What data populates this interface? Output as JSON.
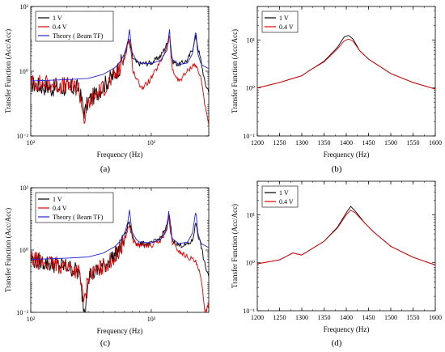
{
  "chart_data": [
    {
      "panel": "(a)",
      "type": "line",
      "xscale": "log",
      "yscale": "log",
      "xlim": [
        100,
        3000
      ],
      "ylim": [
        0.01,
        100
      ],
      "xticks": [
        100,
        1000
      ],
      "xtick_labels": [
        "10²",
        "10³"
      ],
      "yticks": [
        0.01,
        1,
        100
      ],
      "ytick_labels": [
        "10⁻²",
        "10⁰",
        "10²"
      ],
      "xlabel": "Frequency (Hz)",
      "ylabel": "Transfer Function (Acc/Acc)",
      "legend": "top-left",
      "series": [
        {
          "name": "1 V",
          "color": "#000000",
          "noisy": true,
          "x": [
            100,
            150,
            200,
            250,
            280,
            300,
            350,
            400,
            500,
            550,
            600,
            650,
            680,
            700,
            750,
            800,
            1000,
            1200,
            1350,
            1420,
            1450,
            1500,
            1700,
            2000,
            2200,
            2350,
            2450,
            2600,
            2800,
            3000
          ],
          "y": [
            0.4,
            0.3,
            0.3,
            0.3,
            0.05,
            0.12,
            0.2,
            0.35,
            0.8,
            1.5,
            3,
            10,
            5,
            2.6,
            1.9,
            1.7,
            1.8,
            3,
            7,
            14,
            6,
            2,
            1.6,
            2.2,
            5,
            12,
            5,
            1.9,
            0.4,
            0.25
          ]
        },
        {
          "name": "0.4 V",
          "color": "#e00000",
          "noisy": true,
          "x": [
            100,
            150,
            200,
            250,
            280,
            300,
            350,
            400,
            500,
            550,
            600,
            650,
            680,
            700,
            750,
            800,
            850,
            1000,
            1200,
            1350,
            1420,
            1450,
            1500,
            1700,
            2000,
            2200,
            2350,
            2400,
            2500,
            2600,
            2800,
            3000
          ],
          "y": [
            0.45,
            0.4,
            0.35,
            0.3,
            0.03,
            0.1,
            0.2,
            0.3,
            0.7,
            1.2,
            2.5,
            9,
            4,
            1.2,
            0.6,
            0.4,
            0.3,
            0.6,
            2,
            6,
            12,
            4,
            1,
            0.5,
            1,
            1.5,
            1.6,
            1.2,
            0.8,
            0.6,
            0.08,
            0.02
          ]
        },
        {
          "name": "Theory ( Beam TF)",
          "color": "#2222dd",
          "noisy": false,
          "x": [
            100,
            200,
            300,
            400,
            500,
            550,
            600,
            640,
            660,
            690,
            750,
            800,
            1000,
            1200,
            1350,
            1420,
            1450,
            1500,
            1700,
            2000,
            2200,
            2350,
            2400,
            2450,
            2600,
            3000
          ],
          "y": [
            0.5,
            0.55,
            0.6,
            0.8,
            1.3,
            1.9,
            3.5,
            8,
            20,
            4,
            2.2,
            1.8,
            1.7,
            2.2,
            4.5,
            20,
            4,
            2.3,
            1.6,
            1.8,
            3.5,
            20,
            6,
            3.2,
            1.6,
            1.2
          ]
        }
      ]
    },
    {
      "panel": "(b)",
      "type": "line",
      "xscale": "linear",
      "yscale": "log",
      "xlim": [
        1200,
        1600
      ],
      "ylim": [
        0.1,
        50
      ],
      "xticks": [
        1200,
        1250,
        1300,
        1350,
        1400,
        1450,
        1500,
        1550,
        1600
      ],
      "xtick_labels": [
        "1200",
        "1250",
        "1300",
        "1350",
        "1400",
        "1450",
        "1500",
        "1550",
        "1600"
      ],
      "yticks": [
        0.1,
        1,
        10
      ],
      "ytick_labels": [
        "10⁻¹",
        "10⁰",
        "10¹"
      ],
      "xlabel": "Frequency (Hz)",
      "ylabel": "Transfer Function (Acc/Acc)",
      "legend": "top-left",
      "series": [
        {
          "name": "1 V",
          "color": "#000000",
          "x": [
            1200,
            1250,
            1300,
            1320,
            1350,
            1380,
            1395,
            1405,
            1415,
            1430,
            1450,
            1500,
            1550,
            1600
          ],
          "y": [
            1.0,
            1.3,
            1.8,
            2.4,
            3.6,
            7,
            11.5,
            12.5,
            10.5,
            6,
            4,
            2,
            1.3,
            0.95
          ]
        },
        {
          "name": "0.4 V",
          "color": "#e00000",
          "x": [
            1200,
            1250,
            1300,
            1320,
            1350,
            1380,
            1395,
            1405,
            1415,
            1430,
            1450,
            1500,
            1550,
            1600
          ],
          "y": [
            1.0,
            1.3,
            1.8,
            2.4,
            3.5,
            6.5,
            9.5,
            10.5,
            9.5,
            6,
            4,
            2,
            1.3,
            0.95
          ]
        }
      ]
    },
    {
      "panel": "(c)",
      "type": "line",
      "xscale": "log",
      "yscale": "log",
      "xlim": [
        100,
        3000
      ],
      "ylim": [
        0.01,
        100
      ],
      "xticks": [
        100,
        1000
      ],
      "xtick_labels": [
        "10²",
        "10³"
      ],
      "yticks": [
        0.01,
        1,
        100
      ],
      "ytick_labels": [
        "10⁻²",
        "10⁰",
        "10²"
      ],
      "xlabel": "Frequency (Hz)",
      "ylabel": "Transfer Function (Acc/Acc)",
      "legend": "top-left",
      "series": [
        {
          "name": "1 V",
          "color": "#000000",
          "noisy": true,
          "x": [
            100,
            150,
            200,
            250,
            280,
            300,
            350,
            400,
            500,
            550,
            600,
            650,
            680,
            700,
            750,
            800,
            1000,
            1200,
            1350,
            1400,
            1450,
            1500,
            1700,
            2000,
            2200,
            2350,
            2450,
            2600,
            2800,
            3000
          ],
          "y": [
            0.5,
            0.35,
            0.3,
            0.2,
            0.01,
            0.15,
            0.2,
            0.3,
            0.7,
            1.2,
            2.5,
            8,
            5,
            2.6,
            1.7,
            1.6,
            1.6,
            2.5,
            6,
            14,
            6,
            2,
            1.4,
            1.5,
            2,
            8,
            3,
            1.3,
            0.3,
            0.15
          ]
        },
        {
          "name": "0.4 V",
          "color": "#e00000",
          "noisy": true,
          "x": [
            100,
            150,
            200,
            250,
            280,
            300,
            350,
            400,
            500,
            550,
            600,
            650,
            680,
            700,
            750,
            800,
            1000,
            1200,
            1350,
            1400,
            1450,
            1500,
            1700,
            2000,
            2200,
            2350,
            2400,
            2500,
            2600,
            2800,
            3000
          ],
          "y": [
            0.5,
            0.35,
            0.3,
            0.2,
            0.02,
            0.15,
            0.2,
            0.3,
            0.6,
            1,
            2,
            6,
            4,
            2.2,
            1.5,
            1.4,
            1.4,
            2,
            5,
            12,
            5,
            1.7,
            0.9,
            0.6,
            0.5,
            0.4,
            0.3,
            0.2,
            0.1,
            0.01,
            0.02
          ]
        },
        {
          "name": "Theory ( Beam TF)",
          "color": "#2222dd",
          "noisy": false,
          "x": [
            100,
            200,
            300,
            400,
            500,
            550,
            600,
            640,
            660,
            690,
            750,
            800,
            1000,
            1200,
            1350,
            1400,
            1430,
            1500,
            1700,
            2000,
            2200,
            2350,
            2400,
            2450,
            2600,
            3000
          ],
          "y": [
            0.5,
            0.55,
            0.6,
            0.8,
            1.3,
            1.9,
            3.5,
            8,
            20,
            4,
            2.2,
            1.8,
            1.7,
            2.2,
            4.5,
            20,
            4,
            2.3,
            1.6,
            1.8,
            3.5,
            20,
            6,
            3.2,
            1.6,
            1.2
          ]
        }
      ]
    },
    {
      "panel": "(d)",
      "type": "line",
      "xscale": "linear",
      "yscale": "log",
      "xlim": [
        1200,
        1600
      ],
      "ylim": [
        0.1,
        50
      ],
      "xticks": [
        1200,
        1250,
        1300,
        1350,
        1400,
        1450,
        1500,
        1550,
        1600
      ],
      "xtick_labels": [
        "1200",
        "1250",
        "1300",
        "1350",
        "1400",
        "1450",
        "1500",
        "1550",
        "1600"
      ],
      "yticks": [
        0.1,
        1,
        10
      ],
      "ytick_labels": [
        "10⁻¹",
        "10⁰",
        "10¹"
      ],
      "xlabel": "Frequency (Hz)",
      "ylabel": "Transfer Function (Acc/Acc)",
      "legend": "top-left",
      "series": [
        {
          "name": "1 V",
          "color": "#000000",
          "x": [
            1200,
            1250,
            1280,
            1300,
            1350,
            1380,
            1400,
            1410,
            1420,
            1440,
            1460,
            1500,
            1550,
            1600
          ],
          "y": [
            0.95,
            1.15,
            1.6,
            1.45,
            2.8,
            5.5,
            11,
            15,
            12,
            7,
            4.5,
            2.2,
            1.3,
            0.9
          ]
        },
        {
          "name": "0.4 V",
          "color": "#e00000",
          "x": [
            1200,
            1250,
            1280,
            1300,
            1350,
            1380,
            1400,
            1410,
            1420,
            1440,
            1460,
            1500,
            1550,
            1600
          ],
          "y": [
            0.95,
            1.15,
            1.6,
            1.45,
            2.8,
            5.3,
            10,
            12.5,
            11,
            7,
            4.5,
            2.2,
            1.3,
            0.9
          ]
        }
      ]
    }
  ]
}
